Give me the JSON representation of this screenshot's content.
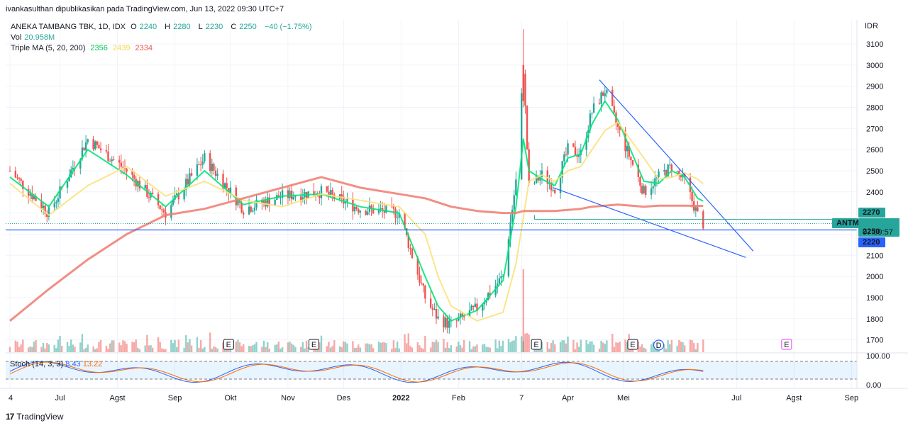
{
  "header": {
    "published": "ivankasulthan dipublikasikan pada TradingView.com, Jun 13, 2022 09:30 UTC+7"
  },
  "legend": {
    "symbol": "ANEKA TAMBANG TBK, 1D, IDX",
    "o_label": "O",
    "o": "2240",
    "h_label": "H",
    "h": "2280",
    "l_label": "L",
    "l": "2230",
    "c_label": "C",
    "c": "2250",
    "chg": "−40 (−1.75%)",
    "vol_label": "Vol",
    "vol": "20.958M",
    "ma_label": "Triple MA (5, 20, 200)",
    "ma5": "2356",
    "ma20": "2439",
    "ma200": "2334"
  },
  "price_axis": {
    "currency": "IDR",
    "ticks": [
      "3100",
      "3000",
      "2900",
      "2800",
      "2700",
      "2600",
      "2500",
      "2400",
      "2100",
      "2000",
      "1900",
      "1800",
      "1700"
    ],
    "badge_upper": "2270",
    "badge_symbol": "ANTM",
    "badge_last": "2250",
    "badge_countdown": "07:09:57",
    "badge_lower": "2220"
  },
  "stoch": {
    "label": "Stoch (14, 3, 3)",
    "k": "8.43",
    "d": "13.22",
    "ticks": [
      "100.00",
      "0.00"
    ]
  },
  "time_axis": {
    "labels": [
      "4",
      "Jul",
      "Agst",
      "Sep",
      "Okt",
      "Nov",
      "Des",
      "2022",
      "Feb",
      "7",
      "Apr",
      "Mei",
      "Jul",
      "Agst",
      "Sep"
    ]
  },
  "event_markers": [
    "E",
    "E",
    "E",
    "E",
    "D",
    "E"
  ],
  "brand": {
    "name": "TradingView",
    "logo": "17"
  },
  "chart_data": {
    "type": "candlestick",
    "title": "ANEKA TAMBANG TBK, 1D, IDX",
    "ylabel": "IDR",
    "ylim": [
      1650,
      3200
    ],
    "x": [
      "2021-06-04",
      "2021-06-25",
      "2021-07-16",
      "2021-08-06",
      "2021-08-27",
      "2021-09-17",
      "2021-10-08",
      "2021-10-29",
      "2021-11-19",
      "2021-12-10",
      "2021-12-31",
      "2022-01-14",
      "2022-01-21",
      "2022-01-28",
      "2022-02-11",
      "2022-02-25",
      "2022-03-04",
      "2022-03-08",
      "2022-03-11",
      "2022-03-18",
      "2022-03-25",
      "2022-04-01",
      "2022-04-08",
      "2022-04-14",
      "2022-04-21",
      "2022-04-28",
      "2022-05-12",
      "2022-05-20",
      "2022-05-27",
      "2022-06-03",
      "2022-06-10",
      "2022-06-13"
    ],
    "close": [
      2500,
      2300,
      2650,
      2500,
      2300,
      2560,
      2320,
      2380,
      2400,
      2320,
      2300,
      1900,
      1800,
      1770,
      1850,
      2000,
      2450,
      2980,
      2420,
      2480,
      2420,
      2600,
      2580,
      2780,
      2880,
      2700,
      2400,
      2470,
      2520,
      2450,
      2290,
      2250
    ],
    "series": [
      {
        "name": "MA 5",
        "values": [
          2470,
          2330,
          2600,
          2480,
          2330,
          2500,
          2340,
          2380,
          2390,
          2330,
          2300,
          2000,
          1860,
          1790,
          1840,
          1980,
          2330,
          2650,
          2500,
          2460,
          2430,
          2560,
          2580,
          2720,
          2830,
          2740,
          2450,
          2440,
          2500,
          2470,
          2370,
          2356
        ]
      },
      {
        "name": "MA 20",
        "values": [
          2440,
          2290,
          2430,
          2520,
          2380,
          2450,
          2360,
          2330,
          2390,
          2360,
          2330,
          2200,
          2000,
          1860,
          1790,
          1830,
          2060,
          2280,
          2450,
          2480,
          2450,
          2500,
          2520,
          2600,
          2690,
          2730,
          2560,
          2460,
          2470,
          2490,
          2460,
          2439
        ]
      },
      {
        "name": "MA 200",
        "values": [
          1790,
          1940,
          2080,
          2200,
          2290,
          2320,
          2370,
          2420,
          2470,
          2420,
          2390,
          2370,
          2350,
          2330,
          2310,
          2300,
          2300,
          2310,
          2310,
          2310,
          2310,
          2315,
          2320,
          2330,
          2335,
          2340,
          2330,
          2335,
          2335,
          2335,
          2334,
          2334
        ]
      }
    ],
    "volume_label": "Vol",
    "stoch": {
      "name": "Stoch (14, 3, 3)",
      "k": 8.43,
      "d": 13.22,
      "ylim": [
        0,
        100
      ]
    },
    "horizontal_levels": [
      2270,
      2220
    ],
    "last_price": 2250
  }
}
